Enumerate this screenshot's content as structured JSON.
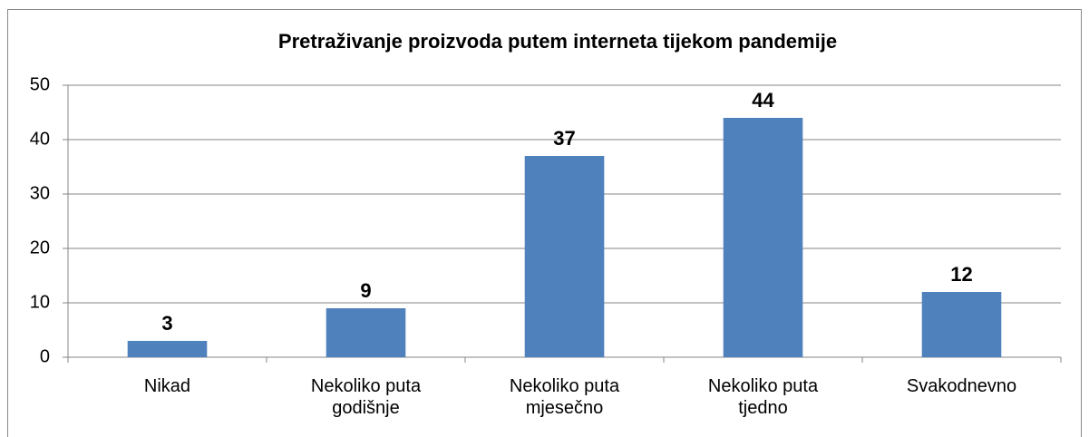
{
  "chart_data": {
    "type": "bar",
    "title": "Pretraživanje proizvoda putem interneta tijekom pandemije",
    "categories": [
      "Nikad",
      "Nekoliko puta godišnje",
      "Nekoliko puta mjesečno",
      "Nekoliko puta tjedno",
      "Svakodnevno"
    ],
    "values": [
      3,
      9,
      37,
      44,
      12
    ],
    "color": "#4f81bd",
    "ylim": [
      0,
      50
    ],
    "yticks": [
      0,
      10,
      20,
      30,
      40,
      50
    ],
    "grid": true
  }
}
